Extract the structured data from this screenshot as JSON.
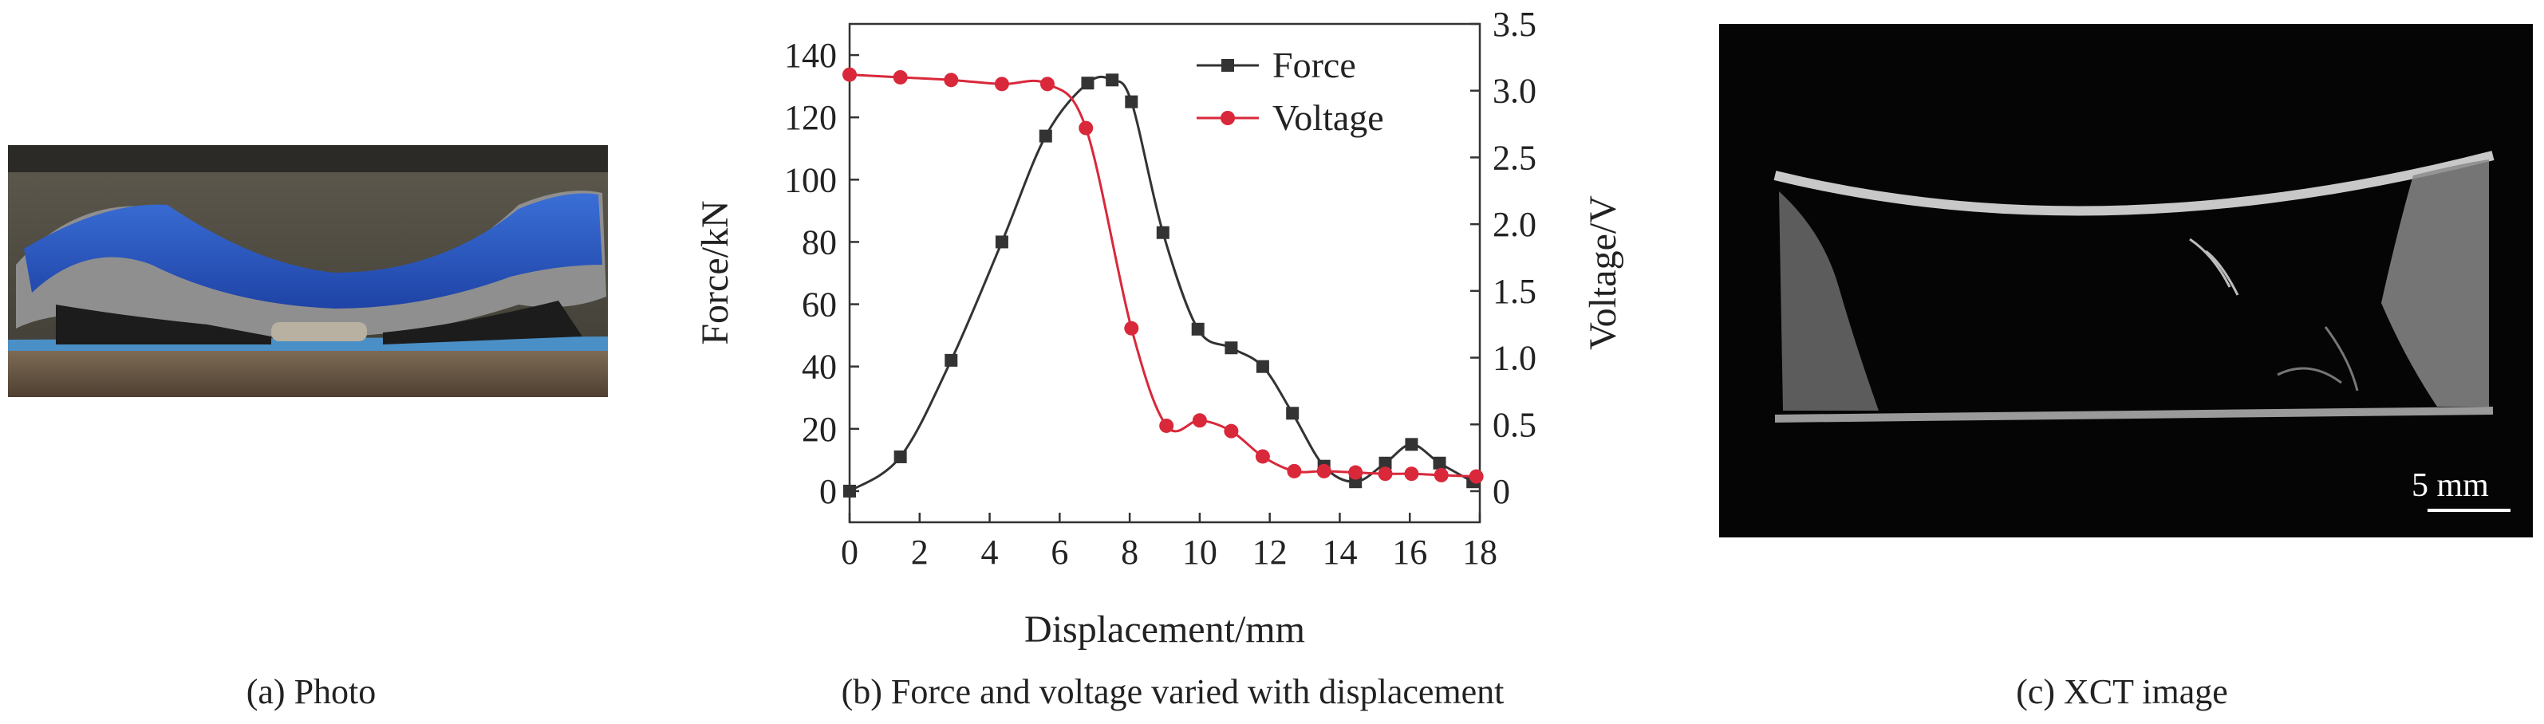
{
  "panels": {
    "a": {
      "caption": "(a) Photo"
    },
    "b": {
      "caption": "(b) Force and voltage varied with displacement"
    },
    "c": {
      "caption": "(c) XCT image",
      "scale_bar_label": "5 mm"
    }
  },
  "chart_data": {
    "type": "line",
    "xlabel": "Displacement/mm",
    "ylabel_left": "Force/kN",
    "ylabel_right": "Voltage/V",
    "xlim": [
      0,
      18
    ],
    "ylim_left": [
      -10,
      150
    ],
    "ylim_right": [
      -0.233,
      3.5
    ],
    "xticks": [
      0,
      2,
      4,
      6,
      8,
      10,
      12,
      14,
      16,
      18
    ],
    "yticks_left": [
      0,
      20,
      40,
      60,
      80,
      100,
      120,
      140
    ],
    "yticks_right": [
      "0",
      "0.5",
      "1.0",
      "1.5",
      "2.0",
      "2.5",
      "3.0",
      "3.5"
    ],
    "legend_position": "top-right",
    "grid": false,
    "series": [
      {
        "name": "Force",
        "axis": "left",
        "color": "#333333",
        "marker": "square",
        "x": [
          0,
          1.45,
          2.9,
          4.35,
          5.6,
          6.8,
          7.5,
          8.05,
          8.95,
          9.95,
          10.9,
          11.8,
          12.65,
          13.55,
          14.45,
          15.3,
          16.05,
          16.85,
          17.8
        ],
        "y": [
          0,
          11,
          42,
          80,
          114,
          131,
          132,
          125,
          83,
          52,
          46,
          40,
          25,
          8,
          3,
          9,
          15,
          9,
          3
        ]
      },
      {
        "name": "Voltage",
        "axis": "right",
        "color": "#d9283a",
        "marker": "circle",
        "x": [
          0,
          1.45,
          2.9,
          4.35,
          5.65,
          6.75,
          8.05,
          9.05,
          10.0,
          10.9,
          11.8,
          12.7,
          13.55,
          14.45,
          15.3,
          16.05,
          16.9,
          17.9
        ],
        "y": [
          3.12,
          3.1,
          3.08,
          3.05,
          3.05,
          2.72,
          1.22,
          0.49,
          0.53,
          0.45,
          0.26,
          0.15,
          0.15,
          0.14,
          0.13,
          0.13,
          0.12,
          0.11
        ]
      }
    ]
  }
}
